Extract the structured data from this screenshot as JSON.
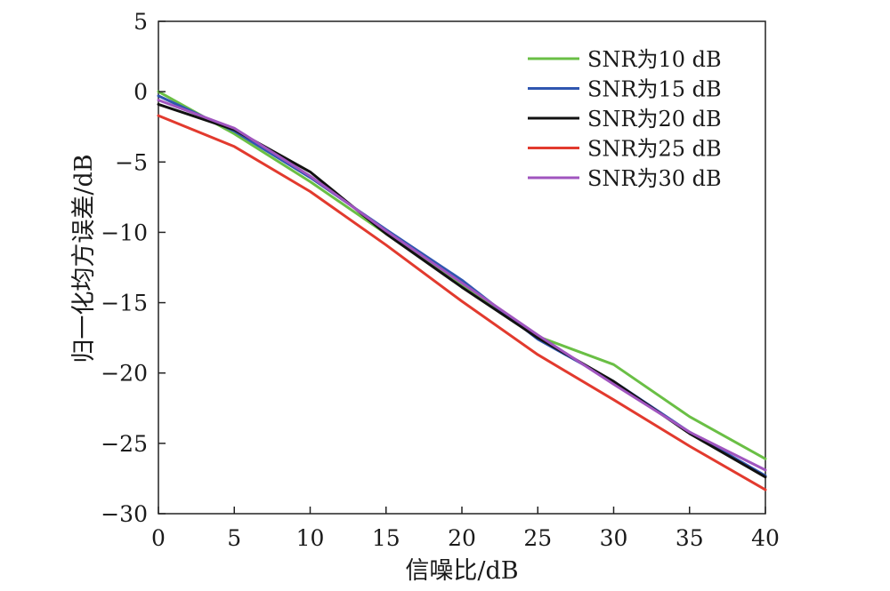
{
  "chart_data": {
    "type": "line",
    "xlabel": "信噪比/dB",
    "ylabel": "归一化均方误差/dB",
    "xlim": [
      0,
      40
    ],
    "ylim": [
      -30,
      5
    ],
    "xticks": [
      "0",
      "5",
      "10",
      "15",
      "20",
      "25",
      "30",
      "35",
      "40"
    ],
    "yticks": [
      "5",
      "0",
      "−5",
      "−10",
      "−15",
      "−20",
      "−25",
      "−30"
    ],
    "grid": false,
    "legend_position": "top-right",
    "x": [
      0,
      5,
      10,
      15,
      20,
      25,
      30,
      35,
      40
    ],
    "series": [
      {
        "name": "SNR为10 dB",
        "color": "#6abf45",
        "values": [
          0.0,
          -3.0,
          -6.4,
          -10.1,
          -13.8,
          -17.4,
          -19.4,
          -23.1,
          -26.1
        ]
      },
      {
        "name": "SNR为15 dB",
        "color": "#2f56b0",
        "values": [
          -0.3,
          -2.8,
          -6.1,
          -9.8,
          -13.4,
          -17.6,
          -20.6,
          -24.2,
          -27.3
        ]
      },
      {
        "name": "SNR为20 dB",
        "color": "#111111",
        "values": [
          -0.9,
          -2.7,
          -5.7,
          -10.1,
          -13.9,
          -17.5,
          -20.6,
          -24.3,
          -27.4
        ]
      },
      {
        "name": "SNR为25 dB",
        "color": "#e23a2e",
        "values": [
          -1.7,
          -3.9,
          -7.1,
          -10.9,
          -14.9,
          -18.7,
          -21.9,
          -25.2,
          -28.3
        ]
      },
      {
        "name": "SNR为30 dB",
        "color": "#a055bf",
        "values": [
          -0.6,
          -2.6,
          -6.0,
          -9.9,
          -13.6,
          -17.3,
          -20.8,
          -24.2,
          -26.9
        ]
      }
    ]
  }
}
